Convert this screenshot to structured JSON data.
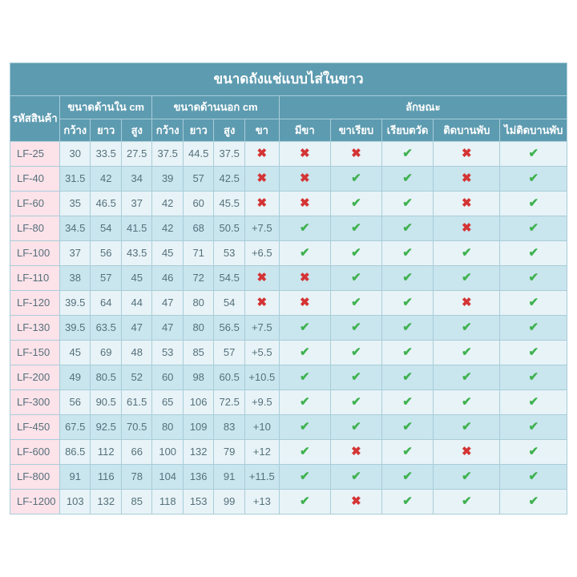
{
  "title": "ขนาดถังแช่แบบไส่ในขาว",
  "header_group": {
    "code": "รหัสสินค้า",
    "inner": "ขนาดด้านใน cm",
    "outer": "ขนาดด้านนอก cm",
    "features": "ลักษณะ"
  },
  "header_sub": {
    "w": "กว้าง",
    "l": "ยาว",
    "h": "สูง",
    "leg": "ขา",
    "f1": "มีขา",
    "f2": "ขาเรียบ",
    "f3": "เรียบตวัด",
    "f4": "ติดบานพับ",
    "f5": "ไม่ติดบานพับ"
  },
  "colors": {
    "header_bg": "#5d9bb0",
    "header_text": "#ffffff",
    "row_even": "#e7f3f7",
    "row_odd": "#c9e5ee",
    "code_col_bg": "#fce2e9",
    "border": "#a8cdd9",
    "cell_text": "#55707a",
    "check": "#3fb24f",
    "cross": "#d43434"
  },
  "rows": [
    {
      "code": "LF-25",
      "iw": "30",
      "il": "33.5",
      "ih": "27.5",
      "ow": "37.5",
      "ol": "44.5",
      "oh": "37.5",
      "leg": null,
      "f": [
        false,
        false,
        true,
        false,
        true,
        true
      ]
    },
    {
      "code": "LF-40",
      "iw": "31.5",
      "il": "42",
      "ih": "34",
      "ow": "39",
      "ol": "57",
      "oh": "42.5",
      "leg": null,
      "f": [
        false,
        true,
        true,
        false,
        true,
        true
      ]
    },
    {
      "code": "LF-60",
      "iw": "35",
      "il": "46.5",
      "ih": "37",
      "ow": "42",
      "ol": "60",
      "oh": "45.5",
      "leg": null,
      "f": [
        false,
        true,
        true,
        false,
        true,
        true
      ]
    },
    {
      "code": "LF-80",
      "iw": "34.5",
      "il": "54",
      "ih": "41.5",
      "ow": "42",
      "ol": "68",
      "oh": "50.5",
      "leg": "+7.5",
      "f": [
        true,
        true,
        true,
        false,
        true,
        true
      ]
    },
    {
      "code": "LF-100",
      "iw": "37",
      "il": "56",
      "ih": "43.5",
      "ow": "45",
      "ol": "71",
      "oh": "53",
      "leg": "+6.5",
      "f": [
        true,
        true,
        true,
        true,
        true,
        true
      ]
    },
    {
      "code": "LF-110",
      "iw": "38",
      "il": "57",
      "ih": "45",
      "ow": "46",
      "ol": "72",
      "oh": "54.5",
      "leg": null,
      "f": [
        false,
        true,
        true,
        true,
        true,
        true
      ]
    },
    {
      "code": "LF-120",
      "iw": "39.5",
      "il": "64",
      "ih": "44",
      "ow": "47",
      "ol": "80",
      "oh": "54",
      "leg": null,
      "f": [
        false,
        true,
        true,
        false,
        true,
        true
      ]
    },
    {
      "code": "LF-130",
      "iw": "39.5",
      "il": "63.5",
      "ih": "47",
      "ow": "47",
      "ol": "80",
      "oh": "56.5",
      "leg": "+7.5",
      "f": [
        true,
        true,
        true,
        true,
        true,
        true
      ]
    },
    {
      "code": "LF-150",
      "iw": "45",
      "il": "69",
      "ih": "48",
      "ow": "53",
      "ol": "85",
      "oh": "57",
      "leg": "+5.5",
      "f": [
        true,
        true,
        true,
        true,
        true,
        true
      ]
    },
    {
      "code": "LF-200",
      "iw": "49",
      "il": "80.5",
      "ih": "52",
      "ow": "60",
      "ol": "98",
      "oh": "60.5",
      "leg": "+10.5",
      "f": [
        true,
        true,
        true,
        true,
        true,
        true
      ]
    },
    {
      "code": "LF-300",
      "iw": "56",
      "il": "90.5",
      "ih": "61.5",
      "ow": "65",
      "ol": "106",
      "oh": "72.5",
      "leg": "+9.5",
      "f": [
        true,
        true,
        true,
        true,
        true,
        true
      ]
    },
    {
      "code": "LF-450",
      "iw": "67.5",
      "il": "92.5",
      "ih": "70.5",
      "ow": "80",
      "ol": "109",
      "oh": "83",
      "leg": "+10",
      "f": [
        true,
        true,
        true,
        true,
        true,
        true
      ]
    },
    {
      "code": "LF-600",
      "iw": "86.5",
      "il": "112",
      "ih": "66",
      "ow": "100",
      "ol": "132",
      "oh": "79",
      "leg": "+12",
      "f": [
        true,
        false,
        true,
        false,
        true,
        true
      ]
    },
    {
      "code": "LF-800",
      "iw": "91",
      "il": "116",
      "ih": "78",
      "ow": "104",
      "ol": "136",
      "oh": "91",
      "leg": "+11.5",
      "f": [
        true,
        true,
        true,
        true,
        true,
        true
      ]
    },
    {
      "code": "LF-1200",
      "iw": "103",
      "il": "132",
      "ih": "85",
      "ow": "118",
      "ol": "153",
      "oh": "99",
      "leg": "+13",
      "f": [
        true,
        false,
        true,
        true,
        true,
        true
      ]
    }
  ]
}
